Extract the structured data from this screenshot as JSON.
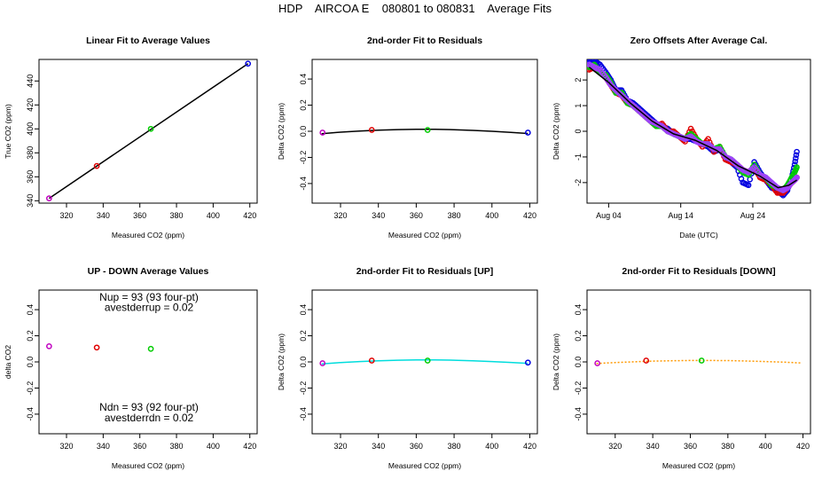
{
  "title": "HDP    AIRCOA E    080801 to 080831    Average Fits",
  "colors": {
    "purple": "#c000c0",
    "red": "#e00000",
    "green": "#00cc00",
    "blue": "#0000e0",
    "black": "#000000",
    "cyan": "#00dddd",
    "orange": "#ff9900",
    "violet": "#a040ff"
  },
  "chart_data": [
    {
      "type": "scatter",
      "title": "Linear Fit to Average Values",
      "xlabel": "Measured CO2 (ppm)",
      "ylabel": "True CO2 (ppm)",
      "xlim": [
        305,
        424
      ],
      "ylim": [
        338,
        458
      ],
      "xticks": [
        320,
        340,
        360,
        380,
        400,
        420
      ],
      "xtick_labels": [
        "320",
        "340",
        "360",
        "380",
        "400",
        "420"
      ],
      "yticks": [
        340,
        360,
        380,
        400,
        420,
        440
      ],
      "ytick_labels": [
        "340",
        "360",
        "380",
        "400",
        "420",
        "440"
      ],
      "points": [
        {
          "x": 310.5,
          "y": 342,
          "color": "purple"
        },
        {
          "x": 336.5,
          "y": 369,
          "color": "red"
        },
        {
          "x": 366,
          "y": 400,
          "color": "green"
        },
        {
          "x": 419,
          "y": 454.5,
          "color": "blue"
        }
      ],
      "lines": [
        {
          "x": [
            310.5,
            419
          ],
          "y": [
            342,
            454.5
          ],
          "color": "black",
          "dashed": false
        }
      ],
      "notes": []
    },
    {
      "type": "scatter",
      "title": "2nd-order Fit to Residuals",
      "xlabel": "Measured CO2 (ppm)",
      "ylabel": "Delta CO2 (ppm)",
      "xlim": [
        305,
        424
      ],
      "ylim": [
        -0.55,
        0.55
      ],
      "xticks": [
        320,
        340,
        360,
        380,
        400,
        420
      ],
      "xtick_labels": [
        "320",
        "340",
        "360",
        "380",
        "400",
        "420"
      ],
      "yticks": [
        -0.4,
        -0.2,
        0,
        0.2,
        0.4
      ],
      "ytick_labels": [
        "-0.4",
        "-0.2",
        "0.0",
        "0.2",
        "0.4"
      ],
      "points": [
        {
          "x": 310.5,
          "y": -0.01,
          "color": "purple"
        },
        {
          "x": 336.5,
          "y": 0.01,
          "color": "red"
        },
        {
          "x": 366,
          "y": 0.01,
          "color": "green"
        },
        {
          "x": 419,
          "y": -0.01,
          "color": "blue"
        }
      ],
      "lines": [
        {
          "x": [
            310,
            320,
            330,
            340,
            350,
            360,
            370,
            380,
            390,
            400,
            410,
            419
          ],
          "y": [
            -0.018,
            -0.007,
            0.002,
            0.009,
            0.013,
            0.015,
            0.015,
            0.012,
            0.007,
            0.0,
            -0.008,
            -0.017
          ],
          "color": "black",
          "dashed": false
        }
      ],
      "notes": []
    },
    {
      "type": "scatter",
      "title": "Zero Offsets After Average Cal.",
      "xlabel": "Date (UTC)",
      "ylabel": "Delta CO2 (ppm)",
      "xlim": [
        0,
        31
      ],
      "ylim": [
        -2.8,
        2.8
      ],
      "xticks": [
        3,
        13,
        23
      ],
      "xtick_labels": [
        "Aug 04",
        "Aug 14",
        "Aug 24"
      ],
      "yticks": [
        -2,
        -1,
        0,
        1,
        2
      ],
      "ytick_labels": [
        "-2",
        "-1",
        "0",
        "1",
        "2"
      ],
      "series": [
        {
          "color": "blue",
          "points": [
            [
              0.3,
              2.7
            ],
            [
              1,
              2.75
            ],
            [
              1.8,
              2.6
            ],
            [
              2.6,
              2.3
            ],
            [
              3.3,
              2.0
            ],
            [
              4,
              1.6
            ],
            [
              4.8,
              1.6
            ],
            [
              5.6,
              1.2
            ],
            [
              6.4,
              1.1
            ],
            [
              7.2,
              0.9
            ],
            [
              8,
              0.7
            ],
            [
              8.8,
              0.5
            ],
            [
              9.6,
              0.3
            ],
            [
              10.4,
              0.2
            ],
            [
              11.2,
              0.1
            ],
            [
              12,
              -0.1
            ],
            [
              12.8,
              -0.2
            ],
            [
              13.6,
              -0.3
            ],
            [
              14.4,
              -0.3
            ],
            [
              15.2,
              -0.4
            ],
            [
              16,
              -0.5
            ],
            [
              16.8,
              -0.6
            ],
            [
              17.6,
              -0.8
            ],
            [
              18.4,
              -0.7
            ],
            [
              19.2,
              -1.0
            ],
            [
              20,
              -1.2
            ],
            [
              20.8,
              -1.4
            ],
            [
              21.6,
              -2.0
            ],
            [
              22.4,
              -2.1
            ],
            [
              23.2,
              -1.2
            ],
            [
              24,
              -1.6
            ],
            [
              24.8,
              -1.9
            ],
            [
              25.6,
              -2.2
            ],
            [
              26.4,
              -2.3
            ],
            [
              27.2,
              -2.5
            ],
            [
              27.8,
              -2.3
            ],
            [
              28.4,
              -1.8
            ],
            [
              28.8,
              -1.3
            ],
            [
              29.1,
              -0.8
            ]
          ]
        },
        {
          "color": "red",
          "points": [
            [
              0.3,
              2.4
            ],
            [
              1,
              2.5
            ],
            [
              1.8,
              2.3
            ],
            [
              2.6,
              2.1
            ],
            [
              3.3,
              1.8
            ],
            [
              4,
              1.5
            ],
            [
              4.8,
              1.4
            ],
            [
              5.6,
              1.1
            ],
            [
              6.4,
              1.0
            ],
            [
              7.2,
              0.8
            ],
            [
              8,
              0.6
            ],
            [
              8.8,
              0.4
            ],
            [
              9.6,
              0.2
            ],
            [
              10.4,
              0.3
            ],
            [
              11.2,
              0.0
            ],
            [
              12,
              0.0
            ],
            [
              12.8,
              -0.2
            ],
            [
              13.6,
              -0.4
            ],
            [
              14.4,
              0.1
            ],
            [
              15.2,
              -0.3
            ],
            [
              16,
              -0.6
            ],
            [
              16.8,
              -0.3
            ],
            [
              17.6,
              -0.8
            ],
            [
              18.4,
              -0.6
            ],
            [
              19.2,
              -1.1
            ],
            [
              20,
              -1.2
            ],
            [
              20.8,
              -1.3
            ],
            [
              21.6,
              -1.5
            ],
            [
              22.4,
              -1.6
            ],
            [
              23.2,
              -1.4
            ],
            [
              24,
              -1.8
            ],
            [
              24.8,
              -1.9
            ],
            [
              25.6,
              -2.1
            ],
            [
              26.4,
              -2.4
            ],
            [
              27.2,
              -2.4
            ],
            [
              27.8,
              -2.2
            ],
            [
              28.4,
              -2.0
            ],
            [
              28.8,
              -1.9
            ],
            [
              29.1,
              -1.8
            ]
          ]
        },
        {
          "color": "green",
          "points": [
            [
              0.3,
              2.5
            ],
            [
              1,
              2.6
            ],
            [
              1.8,
              2.3
            ],
            [
              2.6,
              2.2
            ],
            [
              3.3,
              1.9
            ],
            [
              4,
              1.5
            ],
            [
              4.8,
              1.5
            ],
            [
              5.6,
              1.1
            ],
            [
              6.4,
              1.0
            ],
            [
              7.2,
              0.8
            ],
            [
              8,
              0.6
            ],
            [
              8.8,
              0.4
            ],
            [
              9.6,
              0.2
            ],
            [
              10.4,
              0.2
            ],
            [
              11.2,
              0.0
            ],
            [
              12,
              -0.1
            ],
            [
              12.8,
              -0.2
            ],
            [
              13.6,
              -0.3
            ],
            [
              14.4,
              -0.1
            ],
            [
              15.2,
              -0.3
            ],
            [
              16,
              -0.5
            ],
            [
              16.8,
              -0.5
            ],
            [
              17.6,
              -0.7
            ],
            [
              18.4,
              -0.6
            ],
            [
              19.2,
              -1.0
            ],
            [
              20,
              -1.1
            ],
            [
              20.8,
              -1.3
            ],
            [
              21.6,
              -1.6
            ],
            [
              22.4,
              -1.7
            ],
            [
              23.2,
              -1.3
            ],
            [
              24,
              -1.7
            ],
            [
              24.8,
              -1.8
            ],
            [
              25.6,
              -2.1
            ],
            [
              26.4,
              -2.2
            ],
            [
              27.2,
              -2.3
            ],
            [
              27.8,
              -2.1
            ],
            [
              28.4,
              -1.8
            ],
            [
              28.8,
              -1.6
            ],
            [
              29.1,
              -1.4
            ]
          ]
        },
        {
          "color": "violet",
          "points": [
            [
              0.3,
              2.6
            ],
            [
              1,
              2.5
            ],
            [
              1.8,
              2.4
            ],
            [
              2.6,
              2.1
            ],
            [
              3.3,
              1.8
            ],
            [
              4,
              1.6
            ],
            [
              4.8,
              1.4
            ],
            [
              5.6,
              1.2
            ],
            [
              6.4,
              1.0
            ],
            [
              7.2,
              0.8
            ],
            [
              8,
              0.6
            ],
            [
              8.8,
              0.4
            ],
            [
              9.6,
              0.3
            ],
            [
              10.4,
              0.2
            ],
            [
              11.2,
              0.0
            ],
            [
              12,
              -0.1
            ],
            [
              12.8,
              -0.2
            ],
            [
              13.6,
              -0.3
            ],
            [
              14.4,
              -0.2
            ],
            [
              15.2,
              -0.4
            ],
            [
              16,
              -0.5
            ],
            [
              16.8,
              -0.5
            ],
            [
              17.6,
              -0.7
            ],
            [
              18.4,
              -0.7
            ],
            [
              19.2,
              -1.0
            ],
            [
              20,
              -1.1
            ],
            [
              20.8,
              -1.3
            ],
            [
              21.6,
              -1.5
            ],
            [
              22.4,
              -1.6
            ],
            [
              23.2,
              -1.4
            ],
            [
              24,
              -1.7
            ],
            [
              24.8,
              -1.8
            ],
            [
              25.6,
              -2.0
            ],
            [
              26.4,
              -2.2
            ],
            [
              27.2,
              -2.3
            ],
            [
              27.8,
              -2.2
            ],
            [
              28.4,
              -2.0
            ],
            [
              28.8,
              -1.9
            ],
            [
              29.1,
              -1.8
            ]
          ]
        }
      ],
      "lines": [
        {
          "x": [
            0.3,
            3,
            6,
            9,
            12,
            15,
            18,
            21,
            24,
            26.5,
            28,
            29.1
          ],
          "y": [
            2.5,
            1.9,
            1.1,
            0.4,
            -0.1,
            -0.35,
            -0.75,
            -1.35,
            -1.75,
            -2.2,
            -2.1,
            -1.9
          ],
          "color": "black",
          "dashed": false
        }
      ],
      "notes": []
    },
    {
      "type": "scatter",
      "title": "UP - DOWN Average Values",
      "xlabel": "Measured CO2 (ppm)",
      "ylabel": "delta CO2",
      "xlim": [
        305,
        424
      ],
      "ylim": [
        -0.55,
        0.55
      ],
      "xticks": [
        320,
        340,
        360,
        380,
        400,
        420
      ],
      "xtick_labels": [
        "320",
        "340",
        "360",
        "380",
        "400",
        "420"
      ],
      "yticks": [
        -0.4,
        -0.2,
        0,
        0.2,
        0.4
      ],
      "ytick_labels": [
        "-0.4",
        "-0.2",
        "0.0",
        "0.2",
        "0.4"
      ],
      "points": [
        {
          "x": 310.5,
          "y": 0.12,
          "color": "purple"
        },
        {
          "x": 336.5,
          "y": 0.11,
          "color": "red"
        },
        {
          "x": 366,
          "y": 0.1,
          "color": "green"
        }
      ],
      "lines": [],
      "notes": [
        {
          "text": "Nup = 93 (93 four-pt)",
          "x": 365,
          "y": 0.47
        },
        {
          "text": "avestderrup =  0.02",
          "x": 365,
          "y": 0.39
        },
        {
          "text": "Ndn = 93 (92 four-pt)",
          "x": 365,
          "y": -0.375
        },
        {
          "text": "avestderrdn =  0.02",
          "x": 365,
          "y": -0.455
        }
      ]
    },
    {
      "type": "scatter",
      "title": "2nd-order Fit to Residuals [UP]",
      "xlabel": "Measured CO2 (ppm)",
      "ylabel": "Delta CO2 (ppm)",
      "xlim": [
        305,
        424
      ],
      "ylim": [
        -0.55,
        0.55
      ],
      "xticks": [
        320,
        340,
        360,
        380,
        400,
        420
      ],
      "xtick_labels": [
        "320",
        "340",
        "360",
        "380",
        "400",
        "420"
      ],
      "yticks": [
        -0.4,
        -0.2,
        0,
        0.2,
        0.4
      ],
      "ytick_labels": [
        "-0.4",
        "-0.2",
        "0.0",
        "0.2",
        "0.4"
      ],
      "points": [
        {
          "x": 310.5,
          "y": -0.01,
          "color": "purple"
        },
        {
          "x": 336.5,
          "y": 0.01,
          "color": "red"
        },
        {
          "x": 366,
          "y": 0.01,
          "color": "green"
        },
        {
          "x": 419,
          "y": -0.005,
          "color": "blue"
        }
      ],
      "lines": [
        {
          "x": [
            310,
            320,
            330,
            340,
            350,
            360,
            370,
            380,
            390,
            400,
            410,
            419
          ],
          "y": [
            -0.015,
            -0.005,
            0.003,
            0.009,
            0.013,
            0.015,
            0.015,
            0.013,
            0.009,
            0.003,
            -0.004,
            -0.011
          ],
          "color": "cyan",
          "dashed": false
        }
      ],
      "notes": []
    },
    {
      "type": "scatter",
      "title": "2nd-order Fit to Residuals [DOWN]",
      "xlabel": "Measured CO2 (ppm)",
      "ylabel": "Delta CO2 (ppm)",
      "xlim": [
        305,
        424
      ],
      "ylim": [
        -0.55,
        0.55
      ],
      "xticks": [
        320,
        340,
        360,
        380,
        400,
        420
      ],
      "xtick_labels": [
        "320",
        "340",
        "360",
        "380",
        "400",
        "420"
      ],
      "yticks": [
        -0.4,
        -0.2,
        0,
        0.2,
        0.4
      ],
      "ytick_labels": [
        "-0.4",
        "-0.2",
        "0.0",
        "0.2",
        "0.4"
      ],
      "points": [
        {
          "x": 310.5,
          "y": -0.01,
          "color": "purple"
        },
        {
          "x": 336.5,
          "y": 0.01,
          "color": "red"
        },
        {
          "x": 366,
          "y": 0.01,
          "color": "green"
        }
      ],
      "lines": [
        {
          "x": [
            310,
            320,
            330,
            340,
            350,
            360,
            370,
            380,
            390,
            400,
            410,
            419
          ],
          "y": [
            -0.012,
            -0.005,
            0.001,
            0.006,
            0.009,
            0.011,
            0.011,
            0.01,
            0.007,
            0.003,
            -0.002,
            -0.008
          ],
          "color": "orange",
          "dashed": true
        }
      ],
      "notes": []
    }
  ]
}
